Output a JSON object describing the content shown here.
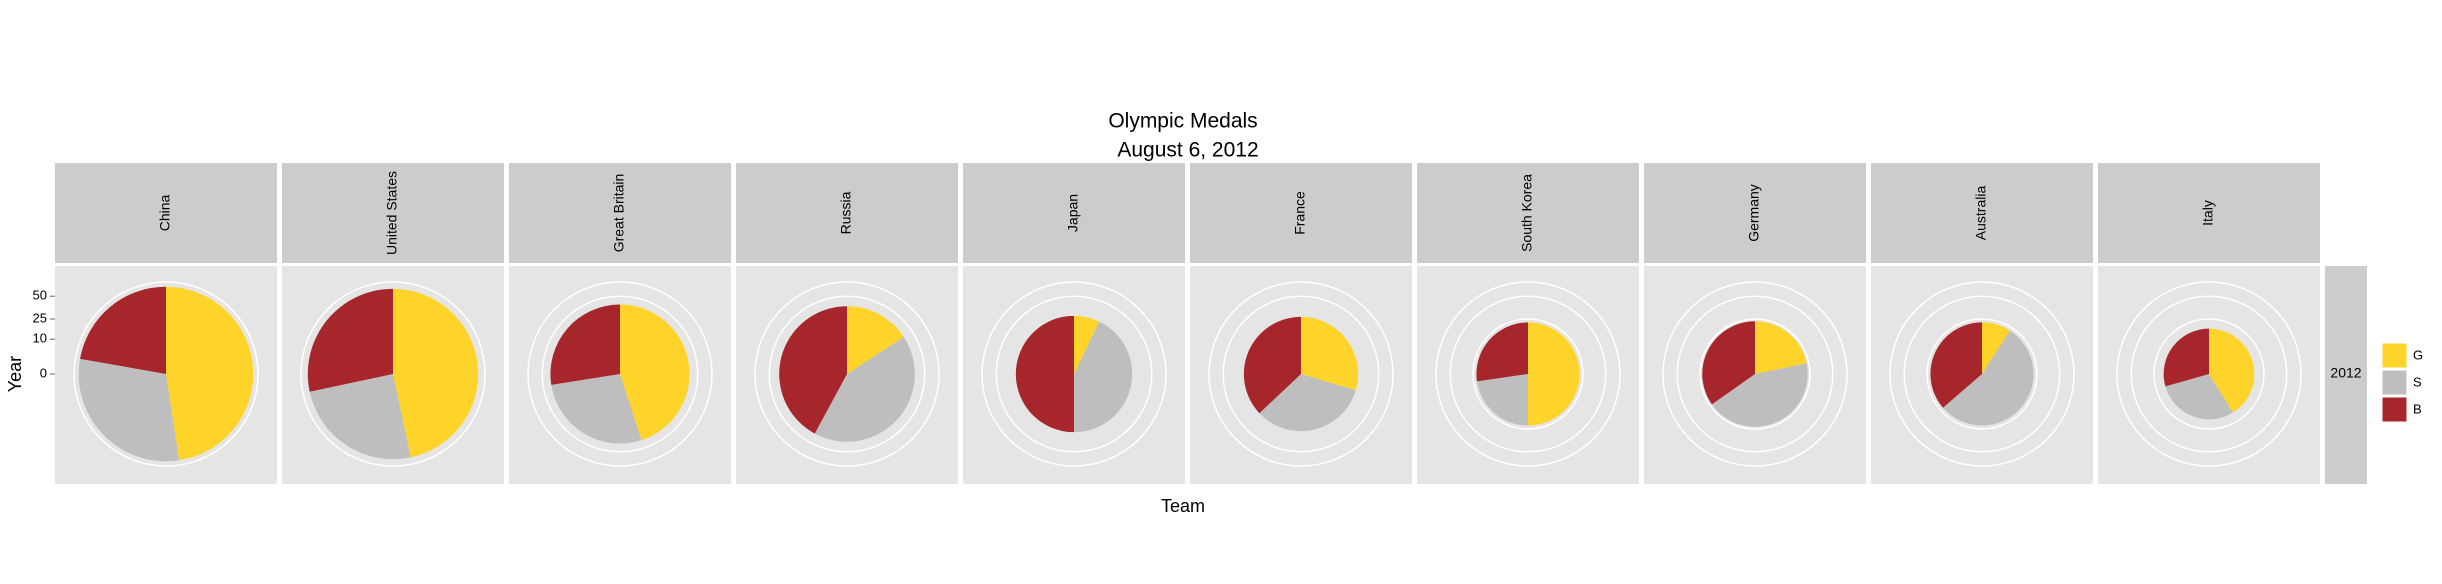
{
  "chart_data": {
    "type": "pie",
    "title": "Olympic Medals",
    "subtitle": "August 6, 2012",
    "x_label": "Team",
    "y_label": "Year",
    "facet_row": "2012",
    "categories": [
      "China",
      "United States",
      "Great Britain",
      "Russia",
      "Japan",
      "France",
      "South Korea",
      "Germany",
      "Australia",
      "Italy"
    ],
    "series": [
      {
        "name": "G",
        "color": "#FED42A",
        "values": [
          30,
          28,
          18,
          6,
          2,
          8,
          11,
          5,
          2,
          7
        ]
      },
      {
        "name": "S",
        "color": "#BEBEBE",
        "values": [
          19,
          15,
          11,
          16,
          12,
          9,
          5,
          10,
          12,
          5
        ]
      },
      {
        "name": "B",
        "color": "#A6262C",
        "values": [
          14,
          17,
          11,
          16,
          14,
          10,
          6,
          8,
          8,
          5
        ]
      }
    ],
    "radius_scale": "sqrt",
    "ylim": [
      0,
      70
    ],
    "yticks": [
      0,
      10,
      25,
      50
    ],
    "grid": true,
    "legend": "right"
  }
}
